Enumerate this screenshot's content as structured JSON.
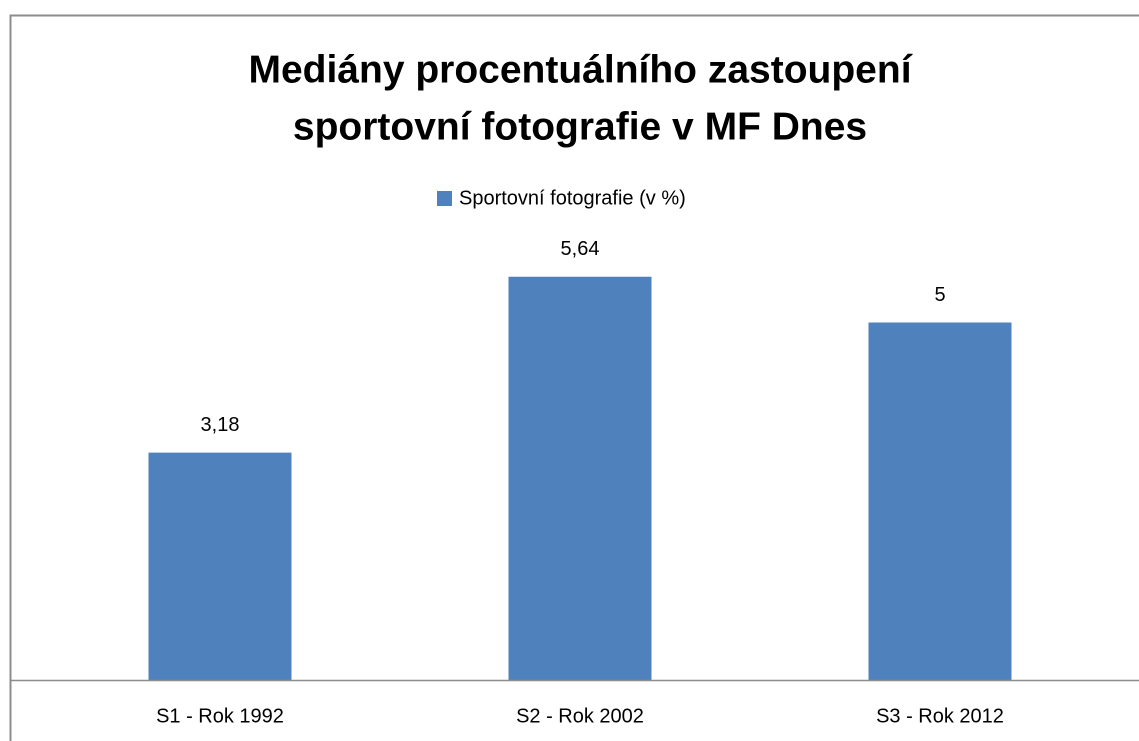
{
  "chart_data": {
    "type": "bar",
    "title": [
      "Mediány procentuálního zastoupení",
      "sportovní fotografie v MF Dnes"
    ],
    "categories": [
      "S1 - Rok 1992",
      "S2 - Rok 2002",
      "S3 - Rok 2012"
    ],
    "series": [
      {
        "name": "Sportovní fotografie (v %)",
        "color": "#4f81bd",
        "values": [
          3.18,
          5.64,
          5
        ],
        "value_labels": [
          "3,18",
          "5,64",
          "5"
        ]
      }
    ],
    "ylim": [
      0,
      6
    ],
    "legend": "top"
  }
}
